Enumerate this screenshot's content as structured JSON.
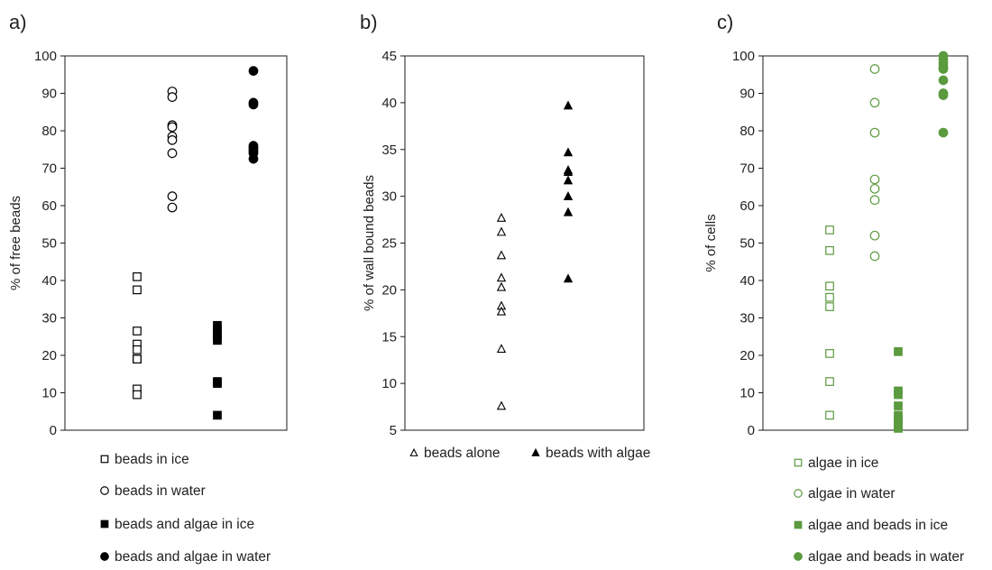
{
  "chart_data": [
    {
      "panel": "a)",
      "type": "scatter",
      "title": "",
      "xlabel": "",
      "ylabel": "% of free beads",
      "ylim": [
        0,
        100
      ],
      "yticks": [
        0,
        10,
        20,
        30,
        40,
        50,
        60,
        70,
        80,
        90,
        100
      ],
      "grid": false,
      "legend_position": "bottom",
      "series": [
        {
          "name": "beads in ice",
          "x": 1,
          "marker": "square",
          "filled": false,
          "color": "#000000",
          "values": [
            41,
            37.5,
            26.5,
            23,
            21.5,
            19,
            19,
            11,
            9.5
          ]
        },
        {
          "name": "beads in water",
          "x": 2,
          "marker": "circle",
          "filled": false,
          "color": "#000000",
          "values": [
            90.5,
            89,
            81.5,
            81,
            78.5,
            77.5,
            74,
            62.5,
            59.5
          ]
        },
        {
          "name": "beads and algae in ice",
          "x": 3,
          "marker": "square",
          "filled": true,
          "color": "#000000",
          "values": [
            28,
            27,
            26,
            25,
            24,
            13,
            12.5,
            4
          ]
        },
        {
          "name": "beads and algae in water",
          "x": 4,
          "marker": "circle",
          "filled": true,
          "color": "#000000",
          "values": [
            96,
            87.5,
            87,
            76,
            75.5,
            75,
            74.5,
            74,
            72.5
          ]
        }
      ]
    },
    {
      "panel": "b)",
      "type": "scatter",
      "title": "",
      "xlabel": "",
      "ylabel": "% of wall bound beads",
      "ylim": [
        5,
        45
      ],
      "yticks": [
        5,
        10,
        15,
        20,
        25,
        30,
        35,
        40,
        45
      ],
      "grid": false,
      "legend_position": "bottom",
      "series": [
        {
          "name": "beads alone",
          "x": 1,
          "marker": "triangle",
          "filled": false,
          "color": "#000000",
          "values": [
            27.7,
            26.2,
            23.7,
            21.3,
            20.3,
            18.3,
            17.7,
            13.7,
            7.6
          ]
        },
        {
          "name": "beads with algae",
          "x": 2,
          "marker": "triangle",
          "filled": true,
          "color": "#000000",
          "values": [
            39.7,
            34.7,
            32.8,
            32.6,
            31.7,
            30.0,
            28.3,
            21.2
          ]
        }
      ]
    },
    {
      "panel": "c)",
      "type": "scatter",
      "title": "",
      "xlabel": "",
      "ylabel": "% of cells",
      "ylim": [
        0,
        100
      ],
      "yticks": [
        0,
        10,
        20,
        30,
        40,
        50,
        60,
        70,
        80,
        90,
        100
      ],
      "grid": false,
      "legend_position": "bottom",
      "series": [
        {
          "name": "algae in ice",
          "x": 1,
          "marker": "square",
          "filled": false,
          "color": "#5b9a3f",
          "values": [
            53.5,
            48,
            38.5,
            35.5,
            33,
            20.5,
            13,
            4
          ]
        },
        {
          "name": "algae in water",
          "x": 2,
          "marker": "circle",
          "filled": false,
          "color": "#5b9a3f",
          "values": [
            96.5,
            87.5,
            79.5,
            67,
            64.5,
            61.5,
            52,
            46.5
          ]
        },
        {
          "name": "algae and beads in ice",
          "x": 3,
          "marker": "square",
          "filled": true,
          "color": "#5b9a3f",
          "values": [
            21,
            10.5,
            9.5,
            6.5,
            4,
            3,
            2,
            1,
            0.5
          ]
        },
        {
          "name": "algae and beads in water",
          "x": 4,
          "marker": "circle",
          "filled": true,
          "color": "#5b9a3f",
          "values": [
            100,
            99,
            98,
            97,
            96.5,
            93.5,
            90,
            89.5,
            79.5
          ]
        }
      ]
    }
  ]
}
